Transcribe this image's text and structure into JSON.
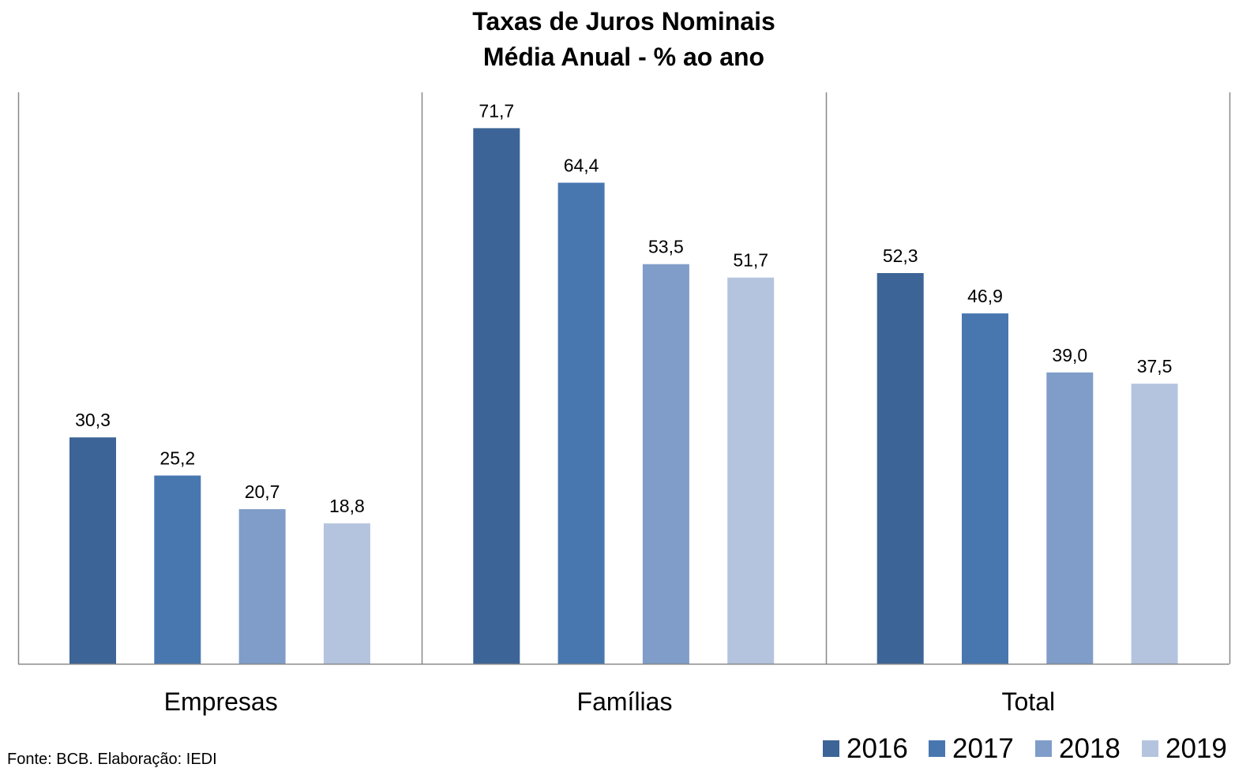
{
  "chart_data": {
    "type": "bar",
    "title": "Taxas  de Juros Nominais",
    "subtitle": "Média Anual - % ao ano",
    "categories": [
      "Empresas",
      "Famílias",
      "Total"
    ],
    "series": [
      {
        "name": "2016",
        "color": "#3c6496",
        "values": [
          30.3,
          71.7,
          52.3
        ],
        "labels": [
          "30,3",
          "71,7",
          "52,3"
        ]
      },
      {
        "name": "2017",
        "color": "#4877b0",
        "values": [
          25.2,
          64.4,
          46.9
        ],
        "labels": [
          "25,2",
          "64,4",
          "46,9"
        ]
      },
      {
        "name": "2018",
        "color": "#7f9dc8",
        "values": [
          20.7,
          53.5,
          39.0
        ],
        "labels": [
          "20,7",
          "53,5",
          "39,0"
        ]
      },
      {
        "name": "2019",
        "color": "#b5c4de",
        "values": [
          18.8,
          51.7,
          37.5
        ],
        "labels": [
          "18,8",
          "51,7",
          "37,5"
        ]
      }
    ],
    "ylim": [
      0,
      76.5
    ],
    "xlabel": "",
    "ylabel": "",
    "grid": false,
    "legend": "bottom-right",
    "source": "Fonte: BCB. Elaboração: IEDI"
  }
}
